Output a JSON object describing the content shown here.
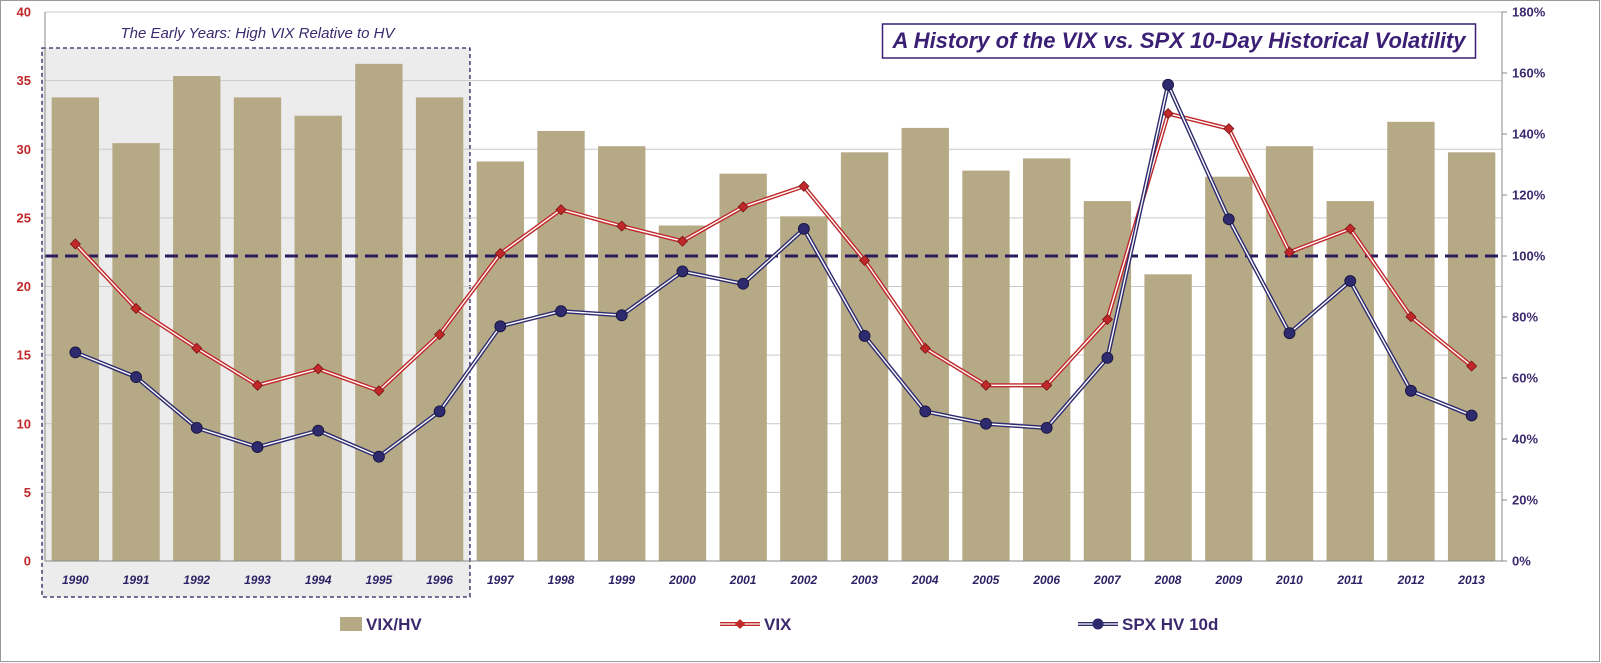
{
  "chart_data": {
    "type": "bar",
    "title": "A History of the VIX vs. SPX 10-Day Historical Volatility",
    "annotation": "The Early Years:  High VIX Relative to HV",
    "categories": [
      "1990",
      "1991",
      "1992",
      "1993",
      "1994",
      "1995",
      "1996",
      "1997",
      "1998",
      "1999",
      "2000",
      "2001",
      "2002",
      "2003",
      "2004",
      "2005",
      "2006",
      "2007",
      "2008",
      "2009",
      "2010",
      "2011",
      "2012",
      "2013"
    ],
    "y_left": {
      "ylim": [
        0,
        40
      ],
      "ticks": [
        "0",
        "5",
        "10",
        "15",
        "20",
        "25",
        "30",
        "35",
        "40"
      ]
    },
    "y_right": {
      "ylim": [
        0,
        1.8
      ],
      "ticks": [
        "0%",
        "20%",
        "40%",
        "60%",
        "80%",
        "100%",
        "120%",
        "140%",
        "160%",
        "180%"
      ]
    },
    "reference_line": {
      "axis": "right",
      "value": 1.0,
      "style": "dashed"
    },
    "series": [
      {
        "name": "VIX/HV",
        "type": "bar",
        "axis": "right",
        "values": [
          1.52,
          1.37,
          1.59,
          1.52,
          1.46,
          1.63,
          1.52,
          1.31,
          1.41,
          1.36,
          1.1,
          1.27,
          1.13,
          1.34,
          1.42,
          1.28,
          1.32,
          1.18,
          0.94,
          1.26,
          1.36,
          1.18,
          1.44,
          1.34
        ]
      },
      {
        "name": "VIX",
        "type": "line",
        "axis": "left",
        "values": [
          23.1,
          18.4,
          15.5,
          12.8,
          14.0,
          12.4,
          16.5,
          22.4,
          25.6,
          24.4,
          23.3,
          25.8,
          27.3,
          21.9,
          15.5,
          12.8,
          12.8,
          17.6,
          32.6,
          31.5,
          22.5,
          24.2,
          17.8,
          14.2
        ]
      },
      {
        "name": "SPX HV 10d",
        "type": "line",
        "axis": "left",
        "values": [
          15.2,
          13.4,
          9.7,
          8.3,
          9.5,
          7.6,
          10.9,
          17.1,
          18.2,
          17.9,
          21.1,
          20.2,
          24.2,
          16.4,
          10.9,
          10.0,
          9.7,
          14.8,
          34.7,
          24.9,
          16.6,
          20.4,
          12.4,
          10.6
        ]
      }
    ],
    "legend": {
      "position": "bottom",
      "entries": [
        {
          "name": "VIX/HV",
          "swatch": "bar"
        },
        {
          "name": "VIX",
          "swatch": "line-diamond"
        },
        {
          "name": "SPX HV 10d",
          "swatch": "line-circle"
        }
      ]
    },
    "colors": {
      "bar": "#b5aa85",
      "vix": "#c0282a",
      "hv": "#2e2a6e",
      "reference_line": "#2b1d5c",
      "highlight_fill": "#ececec"
    },
    "grid": "horizontal"
  }
}
